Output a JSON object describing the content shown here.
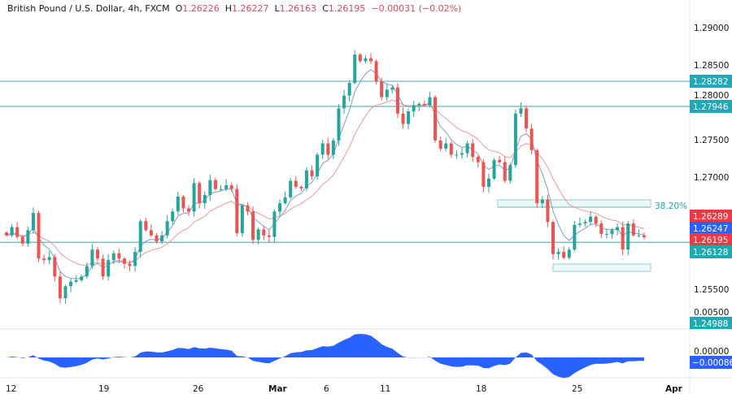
{
  "header": {
    "symbol": "British Pound / U.S. Dollar, 4h, FXCM",
    "open_label": "O",
    "open": "1.26226",
    "high_label": "H",
    "high": "1.26227",
    "low_label": "L",
    "low": "1.26163",
    "close_label": "C",
    "close": "1.26195",
    "change": "−0.00031 (−0.02%)"
  },
  "colors": {
    "up": "#26a69a",
    "down": "#ef5350",
    "level_line": "#5fb8b8",
    "fast_ma": "#7e9bd0",
    "slow_ma": "#e39a9a",
    "oscillator": "#2962ff"
  },
  "chart_data": {
    "type": "candlestick",
    "ylim": [
      1.2495,
      1.2905
    ],
    "price_ticks": [
      "1.29000",
      "1.28500",
      "1.28000",
      "1.27500",
      "1.27000",
      "1.25500"
    ],
    "x_ticks": [
      "12",
      "19",
      "26",
      "Mar",
      "6",
      "11",
      "18",
      "25",
      "Apr"
    ],
    "closes": [
      1.2622,
      1.2633,
      1.262,
      1.2611,
      1.2629,
      1.2652,
      1.2591,
      1.2589,
      1.2593,
      1.2567,
      1.2538,
      1.2554,
      1.256,
      1.2562,
      1.2567,
      1.2581,
      1.2603,
      1.2591,
      1.2567,
      1.2589,
      1.2598,
      1.2591,
      1.2584,
      1.2581,
      1.26,
      1.2641,
      1.2629,
      1.2622,
      1.2614,
      1.2622,
      1.2641,
      1.2654,
      1.2674,
      1.2658,
      1.2654,
      1.2692,
      1.2665,
      1.2676,
      1.2696,
      1.2684,
      1.2684,
      1.2689,
      1.2684,
      1.2625,
      1.2662,
      1.2654,
      1.2616,
      1.263,
      1.2622,
      1.262,
      1.2654,
      1.2665,
      1.2673,
      1.2695,
      1.2687,
      1.2685,
      1.2709,
      1.2701,
      1.273,
      1.2745,
      1.273,
      1.2749,
      1.2792,
      1.2809,
      1.2826,
      1.2864,
      1.2855,
      1.2859,
      1.2855,
      1.2828,
      1.2807,
      1.2817,
      1.282,
      1.2785,
      1.2771,
      1.2788,
      1.2796,
      1.2798,
      1.2796,
      1.2807,
      1.2749,
      1.2738,
      1.2745,
      1.273,
      1.273,
      1.2732,
      1.2745,
      1.2727,
      1.272,
      1.2687,
      1.2698,
      1.2723,
      1.272,
      1.2695,
      1.2716,
      1.2785,
      1.2792,
      1.2765,
      1.2736,
      1.2665,
      1.267,
      1.264,
      1.2597,
      1.26,
      1.2592,
      1.2603,
      1.2636,
      1.2638,
      1.264,
      1.2647,
      1.2638,
      1.2624,
      1.2624,
      1.2629,
      1.2633,
      1.2603,
      1.2638,
      1.2622,
      1.2622,
      1.26195
    ],
    "levels": [
      {
        "price": 1.28282,
        "label": "1.28282"
      },
      {
        "price": 1.27946,
        "label": "1.27946"
      },
      {
        "price": 1.26128,
        "label": "1.26128"
      }
    ],
    "fib_label": "38.20%",
    "price_tags": [
      {
        "label": "1.26289",
        "color": "#f23645"
      },
      {
        "label": "1.26247",
        "color": "#2962ff"
      },
      {
        "label": "1.26195",
        "color": "#f23645"
      },
      {
        "label": "1.24988",
        "color": "#22a7b5"
      }
    ],
    "oscillator": {
      "tick": "0.00500",
      "zero_tick": "0.00000",
      "last_value": "-0.00086"
    }
  }
}
